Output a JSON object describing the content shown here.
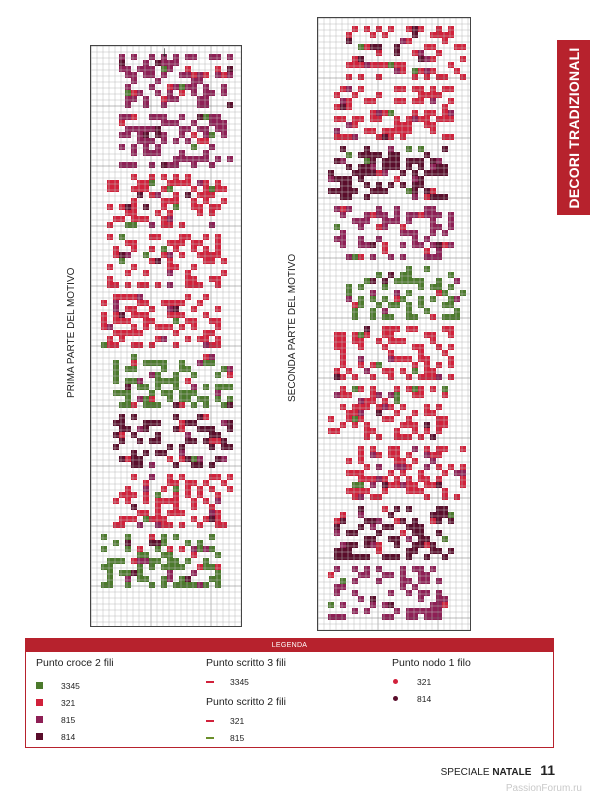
{
  "side_tab": {
    "label": "DECORI TRADIZIONALI",
    "color": "#b7222d"
  },
  "charts": [
    {
      "label": "PRIMA PARTE DEL MOTIVO"
    },
    {
      "label": "SECONDA PARTE DEL MOTIVO"
    }
  ],
  "legend": {
    "title": "LEGENDA",
    "cross_stitch": {
      "title": "Punto croce 2 fili",
      "items": [
        {
          "code": "3345",
          "color": "#4c7a2c"
        },
        {
          "code": "321",
          "color": "#d1213b"
        },
        {
          "code": "815",
          "color": "#8e1f55"
        },
        {
          "code": "814",
          "color": "#5a0d2b"
        }
      ]
    },
    "backstitch_3": {
      "title": "Punto scritto 3 fili",
      "items": [
        {
          "code": "3345",
          "color": "#d1213b"
        }
      ]
    },
    "backstitch_2": {
      "title": "Punto scritto 2 fili",
      "items": [
        {
          "code": "321",
          "color": "#d1213b"
        },
        {
          "code": "815",
          "color": "#6a8f2a"
        }
      ]
    },
    "knot": {
      "title": "Punto nodo 1 filo",
      "items": [
        {
          "code": "321",
          "color": "#d1213b"
        },
        {
          "code": "814",
          "color": "#5a0d2b"
        }
      ]
    }
  },
  "footer": {
    "prefix": "SPECIALE",
    "brand": "NATALE",
    "page": "11"
  },
  "watermark": "PassionForum.ru"
}
